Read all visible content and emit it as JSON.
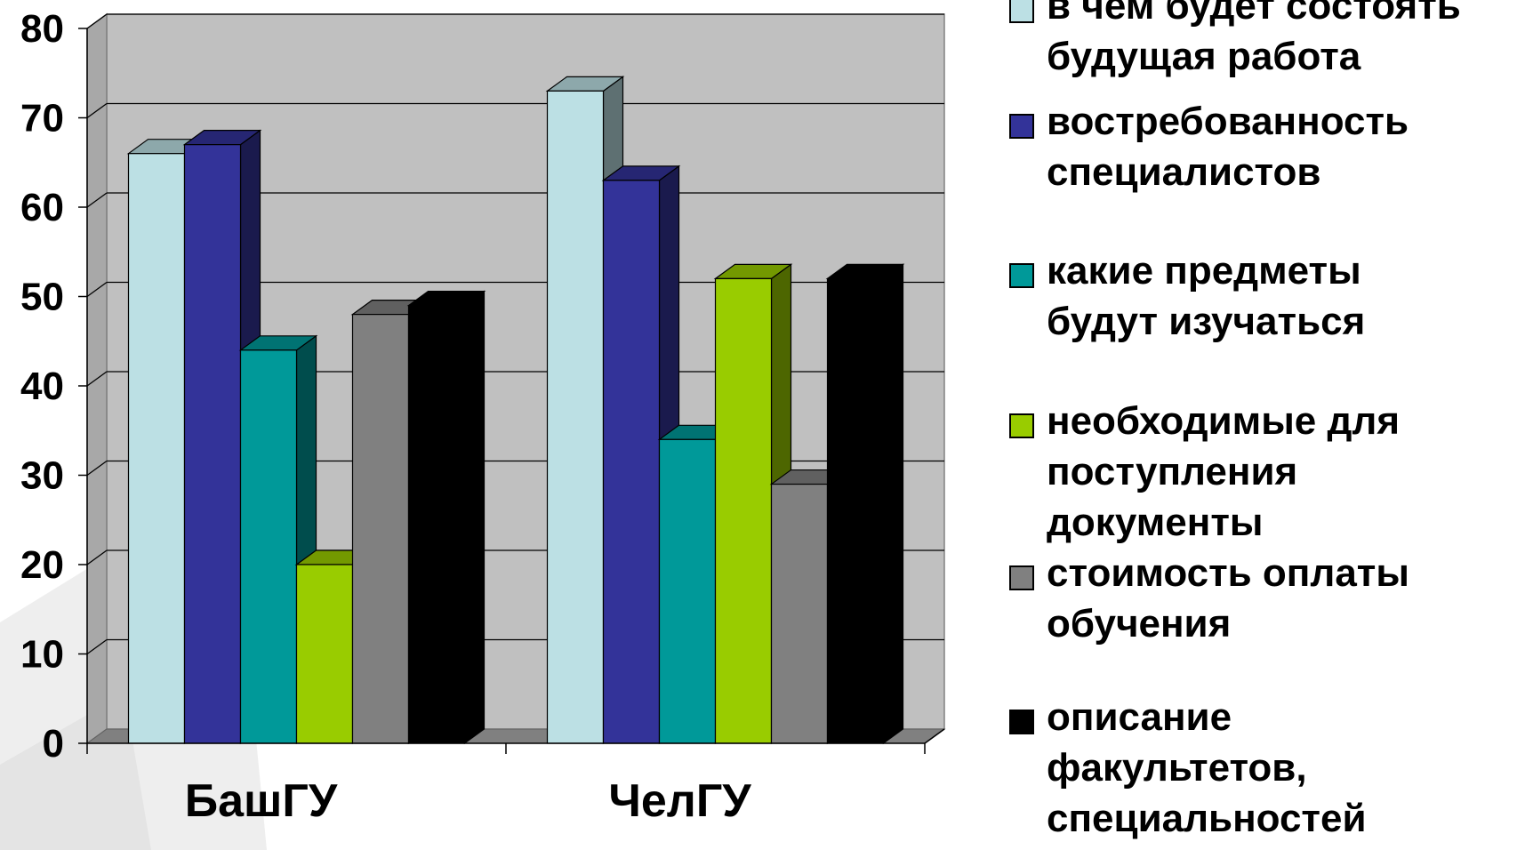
{
  "chart_data": {
    "type": "bar",
    "categories": [
      "БашГУ",
      "ЧелГУ"
    ],
    "series": [
      {
        "name": "в чем будет состоять будущая работа",
        "values": [
          66,
          73
        ],
        "color": "#BCE0E4",
        "legend_text": "в чем будет состоять\nбудущая работа"
      },
      {
        "name": "востребованность специалистов",
        "values": [
          67,
          63
        ],
        "color": "#333399",
        "legend_text": "востребованность\nспециалистов"
      },
      {
        "name": "какие предметы будут изучаться",
        "values": [
          44,
          34
        ],
        "color": "#009999",
        "legend_text": "какие предметы\nбудут изучаться"
      },
      {
        "name": "необходимые для поступления документы",
        "values": [
          20,
          52
        ],
        "color": "#99CC00",
        "legend_text": "необходимые для\nпоступления\nдокументы"
      },
      {
        "name": "стоимость оплаты обучения",
        "values": [
          48,
          29
        ],
        "color": "#808080",
        "legend_text": "стоимость оплаты\nобучения"
      },
      {
        "name": "описание факультетов, специальностей",
        "values": [
          49,
          52
        ],
        "color": "#000000",
        "legend_text": "описание\nфакультетов,\nспециальностей"
      }
    ],
    "ylim": [
      0,
      80
    ],
    "yticks": [
      "0",
      "10",
      "20",
      "30",
      "40",
      "50",
      "60",
      "70",
      "80"
    ],
    "grid": true,
    "legend_position": "right",
    "style": "3d-clustered-column"
  }
}
